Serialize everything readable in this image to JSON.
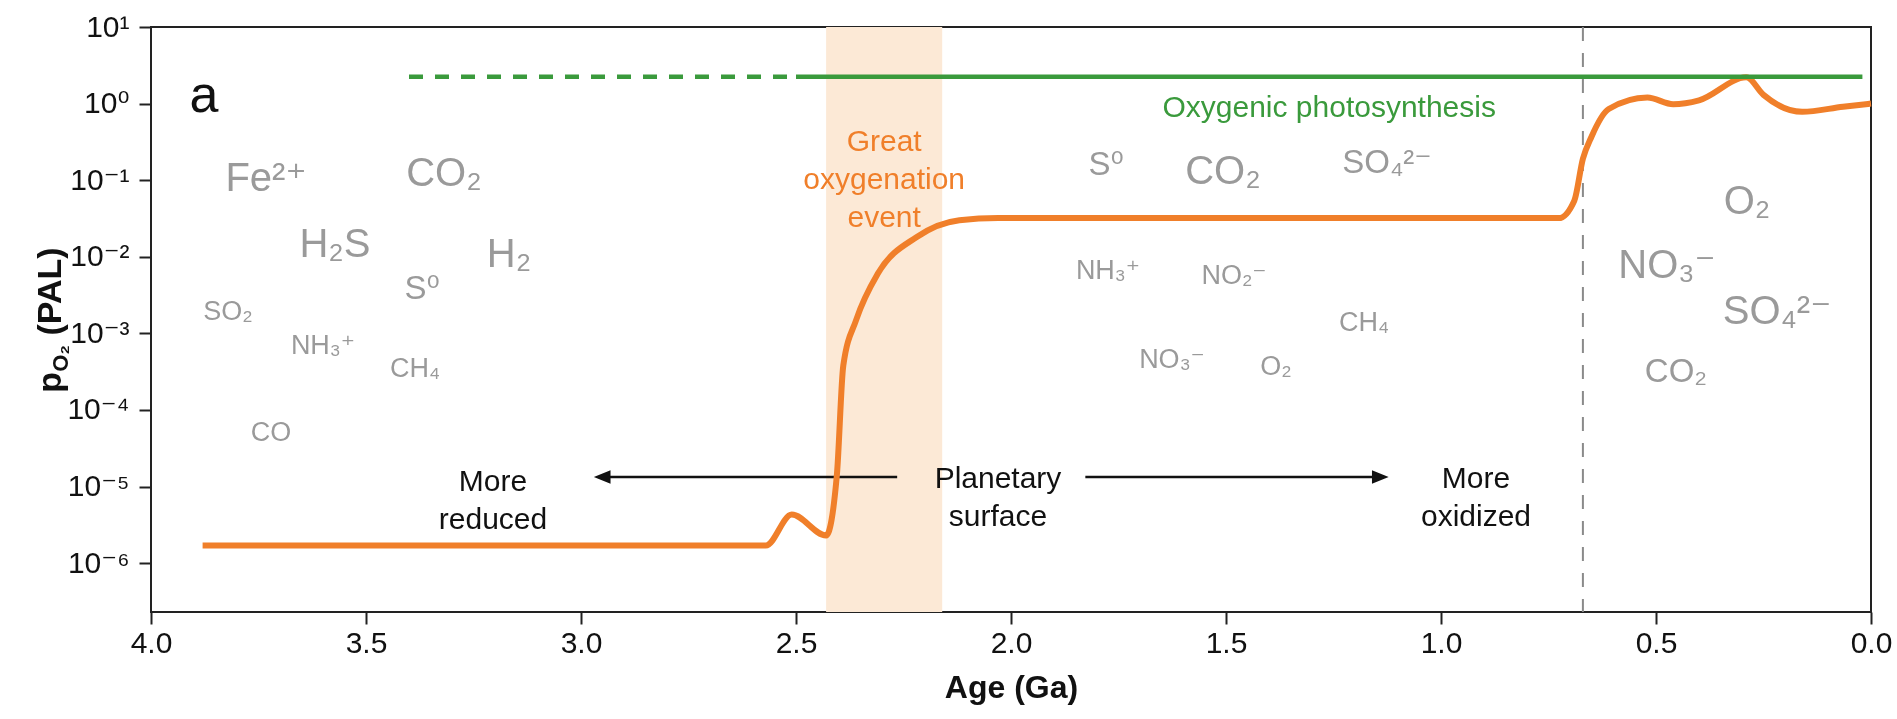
{
  "chart_data": {
    "type": "line",
    "xlabel": "Age (Ga)",
    "ylabel": "p$_{O₂}$ (PAL)",
    "xlim": [
      4,
      0
    ],
    "xticks": [
      {
        "value": 4,
        "label": "4.0"
      },
      {
        "value": 3.5,
        "label": "3.5"
      },
      {
        "value": 3,
        "label": "3.0"
      },
      {
        "value": 2.5,
        "label": "2.5"
      },
      {
        "value": 2,
        "label": "2.0"
      },
      {
        "value": 1.5,
        "label": "1.5"
      },
      {
        "value": 1,
        "label": "1.0"
      },
      {
        "value": 0.5,
        "label": "0.5"
      },
      {
        "value": 0,
        "label": "0.0"
      }
    ],
    "ylim": [
      2.3e-07,
      10
    ],
    "log": true,
    "yticks": [
      {
        "value": 10,
        "label": "10¹"
      },
      {
        "value": 1,
        "label": "10⁰"
      },
      {
        "value": 0.1,
        "label": "10⁻¹"
      },
      {
        "value": 0.01,
        "label": "10⁻²"
      },
      {
        "value": 0.001,
        "label": "10⁻³"
      },
      {
        "value": 0.0001,
        "label": "10⁻⁴"
      },
      {
        "value": 1e-05,
        "label": "10⁻⁵"
      },
      {
        "value": 1e-06,
        "label": "10⁻⁶"
      }
    ],
    "grid": false,
    "legend": false,
    "marker": "none",
    "series": [
      {
        "color": "#f07f2a",
        "line_style": "solid",
        "x": [
          3.88,
          2.57,
          2.51,
          2.43,
          2.405,
          2.39,
          2.36,
          2.31,
          2.22,
          2.12,
          2.03,
          0.726,
          0.69,
          0.67,
          0.65,
          0.61,
          0.52,
          0.46,
          0.4,
          0.29,
          0.25,
          0.16,
          0.065,
          0
        ],
        "values": [
          1.7e-06,
          1.7e-06,
          4.3e-06,
          2.3e-06,
          1.4e-05,
          0.00038,
          0.0015,
          0.006,
          0.018,
          0.03,
          0.032,
          0.032,
          0.054,
          0.19,
          0.37,
          0.85,
          1.2,
          0.98,
          1.1,
          2.2,
          1.3,
          0.78,
          0.91,
          1.0
        ]
      },
      {
        "color": "#3a9a3c",
        "line_style": "dashed",
        "x": [
          3.4,
          2.5
        ],
        "values": [
          2.24,
          2.24
        ]
      },
      {
        "name": "Oxygenic photosynthesis",
        "color": "#3a9a3c",
        "line_style": "solid",
        "x": [
          2.5,
          0.02
        ],
        "values": [
          2.24,
          2.24
        ]
      }
    ],
    "bands": [
      {
        "axis": "x",
        "from": 2.43,
        "to": 2.16,
        "label": "Great\noxygenation\nevent",
        "color": "#fce9d6"
      }
    ],
    "ref_lines": [
      {
        "axis": "x",
        "value": 0.67,
        "color": "#8a8a8a",
        "line_style": "dashed"
      }
    ],
    "annotations": [
      "a",
      "More\nreduced",
      "Planetary\nsurface",
      "More\noxidized",
      "Fe²⁺",
      "CO₂",
      "H₂S",
      "H₂",
      "S⁰",
      "SO₂",
      "NH₃⁺",
      "CH₄",
      "CO",
      "S⁰",
      "CO₂",
      "SO₄²⁻",
      "NH₃⁺",
      "NO₂⁻",
      "NO₃⁻",
      "O₂",
      "CH₄",
      "O₂",
      "NO₃⁻",
      "SO₄²⁻",
      "CO₂"
    ]
  }
}
